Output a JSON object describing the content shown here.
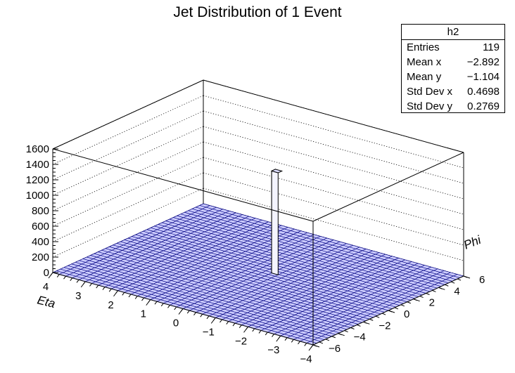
{
  "chart_data": {
    "type": "lego",
    "title": "Jet Distribution of 1 Event",
    "xlabel": "Eta",
    "ylabel": "Phi",
    "zlabel": "",
    "xlim": [
      4,
      -4
    ],
    "ylim": [
      -6,
      6
    ],
    "zlim": [
      0,
      1600
    ],
    "x_ticks": [
      4,
      3,
      2,
      1,
      0,
      -1,
      -2,
      -3,
      -4
    ],
    "x_tick_labels": [
      "4",
      "3",
      "2",
      "1",
      "0",
      "−1",
      "−2",
      "−3",
      "−4"
    ],
    "y_ticks": [
      -6,
      -4,
      -2,
      0,
      2,
      4,
      6
    ],
    "y_tick_labels": [
      "−6",
      "−4",
      "−2",
      "0",
      "2",
      "4",
      "6"
    ],
    "z_ticks": [
      0,
      200,
      400,
      600,
      800,
      1000,
      1200,
      1400,
      1600
    ],
    "bins": [
      40,
      40
    ],
    "peak": {
      "x": -0.3,
      "y": 0.7,
      "value": 1320
    },
    "grid": true,
    "bar_color": "#ccccff",
    "edge_color": "#000080"
  },
  "stats_box": {
    "name": "h2",
    "rows": [
      {
        "key": "Entries",
        "value": "119"
      },
      {
        "key": "Mean x",
        "value": "−2.892"
      },
      {
        "key": "Mean y",
        "value": "−1.104"
      },
      {
        "key": "Std Dev x",
        "value": "0.4698"
      },
      {
        "key": "Std Dev y",
        "value": "0.2769"
      }
    ]
  }
}
